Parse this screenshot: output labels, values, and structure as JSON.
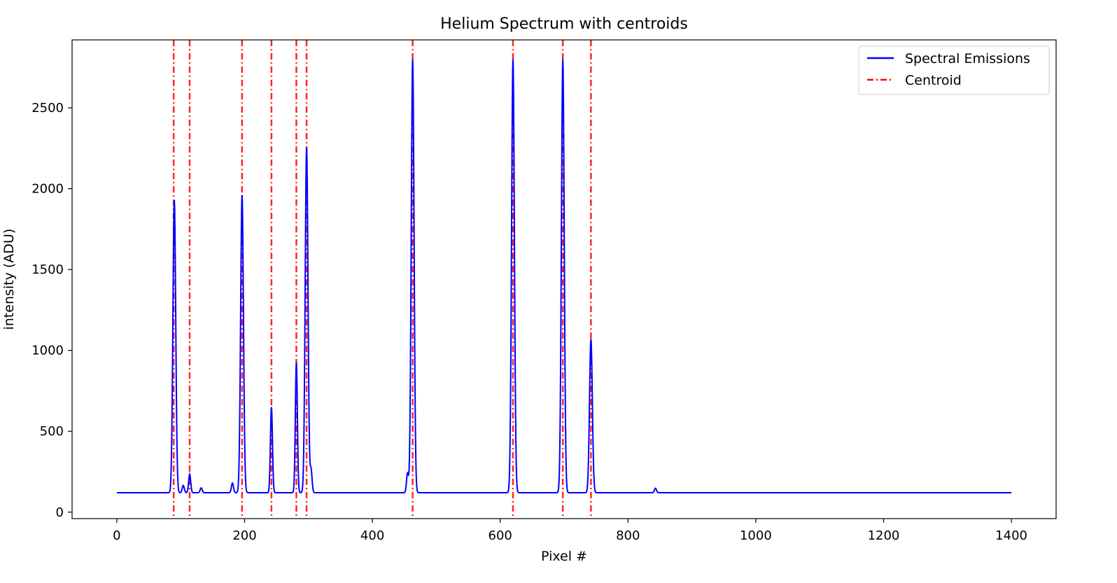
{
  "chart_data": {
    "type": "line",
    "title": "Helium Spectrum with centroids",
    "xlabel": "Pixel #",
    "ylabel": "intensity (ADU)",
    "xlim": [
      -70,
      1470
    ],
    "ylim": [
      -40,
      2920
    ],
    "xticks": [
      0,
      200,
      400,
      600,
      800,
      1000,
      1200,
      1400
    ],
    "yticks": [
      0,
      500,
      1000,
      1500,
      2000,
      2500
    ],
    "grid": false,
    "legend_position": "top-right",
    "series": [
      {
        "name": "Spectral Emissions",
        "color": "#0000ff",
        "style": "solid",
        "baseline": 120,
        "peaks": [
          {
            "x": 90,
            "height": 1930
          },
          {
            "x": 104,
            "height": 165
          },
          {
            "x": 114,
            "height": 235
          },
          {
            "x": 132,
            "height": 150
          },
          {
            "x": 181,
            "height": 180
          },
          {
            "x": 196,
            "height": 1960
          },
          {
            "x": 242,
            "height": 650
          },
          {
            "x": 281,
            "height": 925
          },
          {
            "x": 297,
            "height": 2255
          },
          {
            "x": 304,
            "height": 260
          },
          {
            "x": 455,
            "height": 240
          },
          {
            "x": 463,
            "height": 2800
          },
          {
            "x": 620,
            "height": 2800
          },
          {
            "x": 698,
            "height": 2800
          },
          {
            "x": 742,
            "height": 1070
          },
          {
            "x": 843,
            "height": 148
          }
        ]
      },
      {
        "name": "Centroid",
        "color": "#ff0000",
        "style": "dashdot",
        "x": [
          89,
          114,
          196,
          242,
          281,
          297,
          463,
          620,
          698,
          742
        ]
      }
    ]
  }
}
